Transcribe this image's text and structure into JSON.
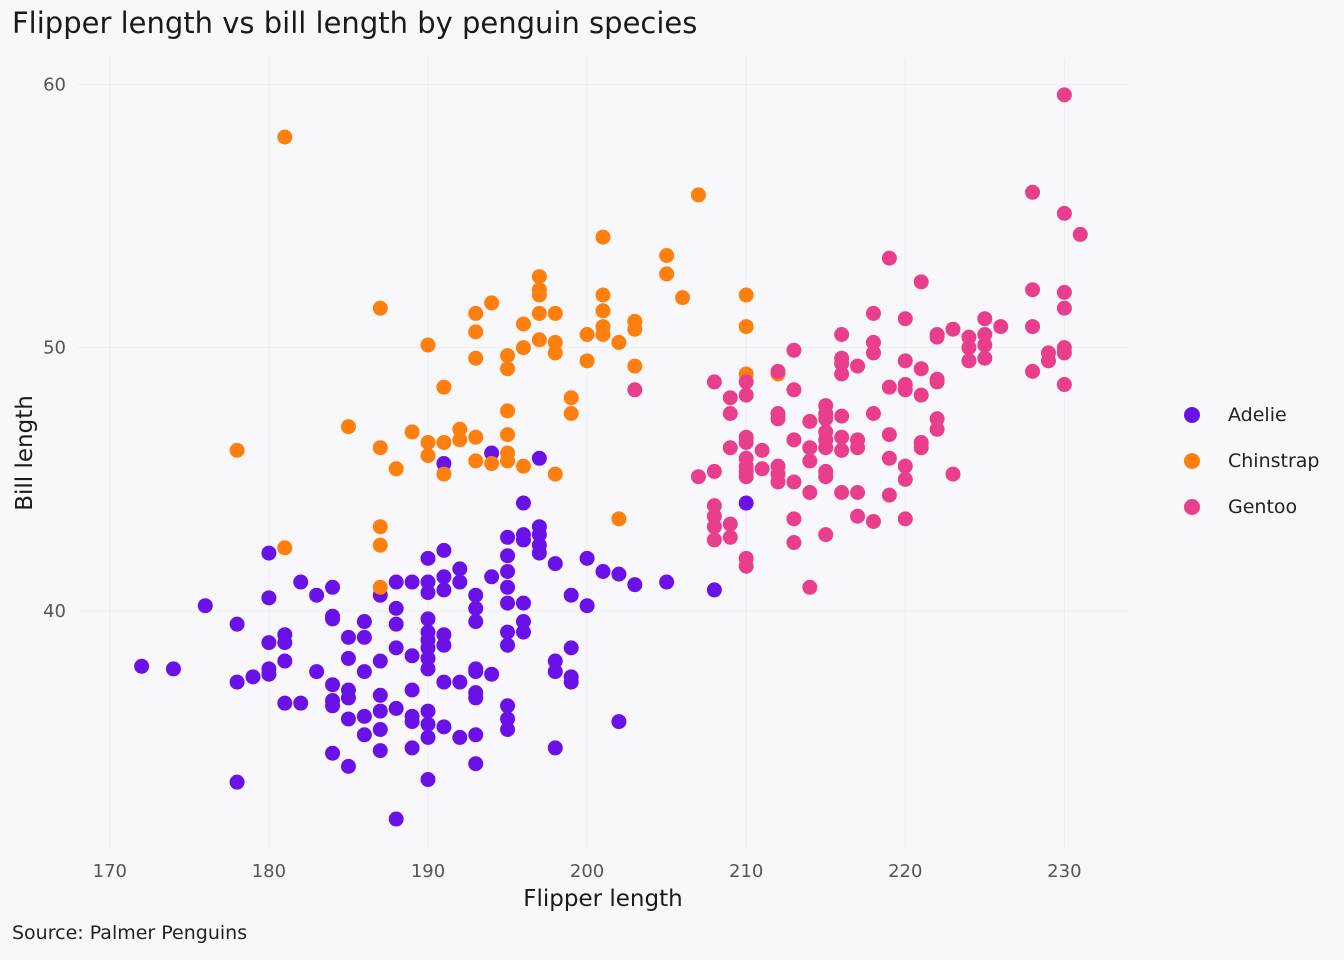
{
  "chart_data": {
    "type": "scatter",
    "title": "Flipper length vs bill length by penguin species",
    "xlabel": "Flipper length",
    "ylabel": "Bill length",
    "caption": "Source: Palmer Penguins",
    "xlim": [
      168,
      234
    ],
    "ylim": [
      31,
      61
    ],
    "xticks": [
      170,
      180,
      190,
      200,
      210,
      220,
      230
    ],
    "yticks": [
      40,
      50,
      60
    ],
    "grid": true,
    "legend_position": "right",
    "series": [
      {
        "name": "Adelie",
        "color": "#6a11e8",
        "points": [
          [
            172,
            37.9
          ],
          [
            174,
            37.8
          ],
          [
            176,
            40.2
          ],
          [
            178,
            39.5
          ],
          [
            178,
            37.3
          ],
          [
            178,
            33.5
          ],
          [
            179,
            37.5
          ],
          [
            180,
            42.2
          ],
          [
            180,
            40.5
          ],
          [
            180,
            38.8
          ],
          [
            180,
            37.8
          ],
          [
            180,
            37.6
          ],
          [
            181,
            39.1
          ],
          [
            181,
            38.8
          ],
          [
            181,
            38.1
          ],
          [
            181,
            36.5
          ],
          [
            182,
            41.1
          ],
          [
            182,
            36.5
          ],
          [
            183,
            40.6
          ],
          [
            183,
            37.7
          ],
          [
            184,
            40.9
          ],
          [
            184,
            39.8
          ],
          [
            184,
            39.7
          ],
          [
            184,
            37.2
          ],
          [
            184,
            36.6
          ],
          [
            184,
            36.4
          ],
          [
            184,
            34.6
          ],
          [
            185,
            38.2
          ],
          [
            185,
            39.0
          ],
          [
            185,
            37.0
          ],
          [
            185,
            36.7
          ],
          [
            185,
            35.9
          ],
          [
            185,
            34.1
          ],
          [
            186,
            39.6
          ],
          [
            186,
            39.0
          ],
          [
            186,
            37.7
          ],
          [
            186,
            36.0
          ],
          [
            186,
            35.3
          ],
          [
            187,
            40.6
          ],
          [
            187,
            38.1
          ],
          [
            187,
            36.8
          ],
          [
            187,
            36.2
          ],
          [
            187,
            35.5
          ],
          [
            187,
            34.7
          ],
          [
            188,
            41.1
          ],
          [
            188,
            40.1
          ],
          [
            188,
            38.6
          ],
          [
            188,
            39.5
          ],
          [
            188,
            36.3
          ],
          [
            188,
            32.1
          ],
          [
            189,
            41.1
          ],
          [
            189,
            38.3
          ],
          [
            189,
            37.0
          ],
          [
            189,
            36.0
          ],
          [
            189,
            35.8
          ],
          [
            189,
            34.8
          ],
          [
            190,
            42.0
          ],
          [
            190,
            41.1
          ],
          [
            190,
            40.7
          ],
          [
            190,
            39.7
          ],
          [
            190,
            39.2
          ],
          [
            190,
            38.9
          ],
          [
            190,
            38.6
          ],
          [
            190,
            38.2
          ],
          [
            190,
            37.8
          ],
          [
            190,
            36.2
          ],
          [
            190,
            35.7
          ],
          [
            190,
            35.2
          ],
          [
            190,
            33.6
          ],
          [
            191,
            42.3
          ],
          [
            191,
            41.3
          ],
          [
            191,
            40.8
          ],
          [
            191,
            39.1
          ],
          [
            191,
            38.7
          ],
          [
            191,
            37.3
          ],
          [
            191,
            35.6
          ],
          [
            192,
            41.6
          ],
          [
            192,
            41.1
          ],
          [
            192,
            37.3
          ],
          [
            192,
            35.2
          ],
          [
            193,
            40.6
          ],
          [
            193,
            40.1
          ],
          [
            193,
            39.6
          ],
          [
            193,
            37.8
          ],
          [
            193,
            37.7
          ],
          [
            193,
            36.9
          ],
          [
            193,
            36.7
          ],
          [
            193,
            35.3
          ],
          [
            193,
            34.2
          ],
          [
            194,
            41.3
          ],
          [
            194,
            37.6
          ],
          [
            195,
            42.8
          ],
          [
            195,
            42.1
          ],
          [
            195,
            41.5
          ],
          [
            195,
            40.9
          ],
          [
            195,
            40.3
          ],
          [
            195,
            39.2
          ],
          [
            195,
            38.7
          ],
          [
            195,
            36.4
          ],
          [
            195,
            35.9
          ],
          [
            195,
            35.5
          ],
          [
            196,
            44.1
          ],
          [
            196,
            42.9
          ],
          [
            196,
            42.7
          ],
          [
            196,
            40.3
          ],
          [
            196,
            39.6
          ],
          [
            196,
            39.2
          ],
          [
            197,
            43.2
          ],
          [
            197,
            42.9
          ],
          [
            197,
            42.5
          ],
          [
            197,
            42.2
          ],
          [
            198,
            41.8
          ],
          [
            198,
            38.1
          ],
          [
            198,
            37.7
          ],
          [
            198,
            34.8
          ],
          [
            199,
            40.6
          ],
          [
            199,
            38.6
          ],
          [
            199,
            37.5
          ],
          [
            199,
            37.3
          ],
          [
            200,
            42.0
          ],
          [
            200,
            40.2
          ],
          [
            201,
            41.5
          ],
          [
            202,
            41.4
          ],
          [
            202,
            35.8
          ],
          [
            203,
            41.0
          ],
          [
            205,
            41.1
          ],
          [
            208,
            40.8
          ],
          [
            210,
            44.1
          ],
          [
            191,
            45.6
          ],
          [
            194,
            46.0
          ],
          [
            197,
            45.8
          ]
        ]
      },
      {
        "name": "Chinstrap",
        "color": "#ff7f0e",
        "points": [
          [
            178,
            46.1
          ],
          [
            181,
            58.0
          ],
          [
            181,
            42.4
          ],
          [
            185,
            47.0
          ],
          [
            187,
            51.5
          ],
          [
            187,
            46.2
          ],
          [
            187,
            43.2
          ],
          [
            187,
            42.5
          ],
          [
            187,
            40.9
          ],
          [
            188,
            45.4
          ],
          [
            189,
            46.8
          ],
          [
            190,
            50.1
          ],
          [
            190,
            46.4
          ],
          [
            190,
            45.9
          ],
          [
            191,
            48.5
          ],
          [
            191,
            46.4
          ],
          [
            191,
            45.2
          ],
          [
            192,
            46.9
          ],
          [
            192,
            46.5
          ],
          [
            193,
            51.3
          ],
          [
            193,
            50.6
          ],
          [
            193,
            49.6
          ],
          [
            193,
            46.6
          ],
          [
            193,
            45.7
          ],
          [
            194,
            51.7
          ],
          [
            194,
            45.6
          ],
          [
            195,
            49.7
          ],
          [
            195,
            49.2
          ],
          [
            195,
            47.6
          ],
          [
            195,
            46.7
          ],
          [
            195,
            46.0
          ],
          [
            195,
            45.7
          ],
          [
            196,
            50.9
          ],
          [
            196,
            50.0
          ],
          [
            196,
            45.5
          ],
          [
            197,
            52.7
          ],
          [
            197,
            52.2
          ],
          [
            197,
            52.0
          ],
          [
            197,
            51.3
          ],
          [
            197,
            50.3
          ],
          [
            198,
            51.3
          ],
          [
            198,
            50.2
          ],
          [
            198,
            49.8
          ],
          [
            198,
            45.2
          ],
          [
            199,
            48.1
          ],
          [
            199,
            47.5
          ],
          [
            200,
            50.5
          ],
          [
            200,
            49.5
          ],
          [
            201,
            54.2
          ],
          [
            201,
            52.0
          ],
          [
            201,
            51.4
          ],
          [
            201,
            50.8
          ],
          [
            201,
            50.5
          ],
          [
            202,
            50.2
          ],
          [
            202,
            43.5
          ],
          [
            203,
            51.0
          ],
          [
            203,
            50.7
          ],
          [
            203,
            49.3
          ],
          [
            205,
            53.5
          ],
          [
            205,
            52.8
          ],
          [
            206,
            51.9
          ],
          [
            207,
            55.8
          ],
          [
            210,
            52.0
          ],
          [
            210,
            50.8
          ],
          [
            210,
            49.0
          ],
          [
            212,
            49.0
          ]
        ]
      },
      {
        "name": "Gentoo",
        "color": "#e83e8c",
        "points": [
          [
            203,
            48.4
          ],
          [
            207,
            45.1
          ],
          [
            208,
            48.7
          ],
          [
            208,
            45.3
          ],
          [
            208,
            44.0
          ],
          [
            208,
            43.6
          ],
          [
            208,
            43.2
          ],
          [
            208,
            42.7
          ],
          [
            209,
            48.1
          ],
          [
            209,
            47.5
          ],
          [
            209,
            46.2
          ],
          [
            209,
            43.3
          ],
          [
            209,
            42.8
          ],
          [
            210,
            48.7
          ],
          [
            210,
            48.2
          ],
          [
            210,
            46.6
          ],
          [
            210,
            46.4
          ],
          [
            210,
            45.8
          ],
          [
            210,
            45.5
          ],
          [
            210,
            45.3
          ],
          [
            210,
            45.1
          ],
          [
            210,
            42.0
          ],
          [
            210,
            41.7
          ],
          [
            211,
            46.1
          ],
          [
            211,
            45.4
          ],
          [
            212,
            49.1
          ],
          [
            212,
            47.5
          ],
          [
            212,
            47.3
          ],
          [
            212,
            45.5
          ],
          [
            212,
            45.2
          ],
          [
            212,
            44.9
          ],
          [
            213,
            49.9
          ],
          [
            213,
            48.4
          ],
          [
            213,
            46.5
          ],
          [
            213,
            44.9
          ],
          [
            213,
            43.5
          ],
          [
            213,
            42.6
          ],
          [
            214,
            47.2
          ],
          [
            214,
            46.2
          ],
          [
            214,
            45.7
          ],
          [
            214,
            44.5
          ],
          [
            214,
            40.9
          ],
          [
            215,
            47.8
          ],
          [
            215,
            47.5
          ],
          [
            215,
            47.3
          ],
          [
            215,
            46.8
          ],
          [
            215,
            46.5
          ],
          [
            215,
            46.2
          ],
          [
            215,
            45.3
          ],
          [
            215,
            45.1
          ],
          [
            215,
            42.9
          ],
          [
            216,
            50.5
          ],
          [
            216,
            49.6
          ],
          [
            216,
            49.4
          ],
          [
            216,
            49.0
          ],
          [
            216,
            47.4
          ],
          [
            216,
            46.6
          ],
          [
            216,
            46.1
          ],
          [
            216,
            44.5
          ],
          [
            217,
            49.3
          ],
          [
            217,
            46.5
          ],
          [
            217,
            46.2
          ],
          [
            217,
            44.5
          ],
          [
            217,
            43.6
          ],
          [
            218,
            51.3
          ],
          [
            218,
            50.2
          ],
          [
            218,
            49.8
          ],
          [
            218,
            47.5
          ],
          [
            218,
            43.4
          ],
          [
            219,
            53.4
          ],
          [
            219,
            48.5
          ],
          [
            219,
            46.7
          ],
          [
            219,
            45.8
          ],
          [
            219,
            44.4
          ],
          [
            220,
            51.1
          ],
          [
            220,
            49.5
          ],
          [
            220,
            48.6
          ],
          [
            220,
            48.4
          ],
          [
            220,
            45.5
          ],
          [
            220,
            45.0
          ],
          [
            220,
            43.5
          ],
          [
            221,
            52.5
          ],
          [
            221,
            49.2
          ],
          [
            221,
            48.2
          ],
          [
            221,
            46.4
          ],
          [
            221,
            46.2
          ],
          [
            222,
            50.5
          ],
          [
            222,
            50.4
          ],
          [
            222,
            48.8
          ],
          [
            222,
            48.7
          ],
          [
            222,
            47.3
          ],
          [
            222,
            46.9
          ],
          [
            223,
            50.7
          ],
          [
            223,
            45.2
          ],
          [
            224,
            50.4
          ],
          [
            224,
            50.0
          ],
          [
            224,
            49.5
          ],
          [
            225,
            51.1
          ],
          [
            225,
            50.5
          ],
          [
            225,
            50.1
          ],
          [
            225,
            49.6
          ],
          [
            226,
            50.8
          ],
          [
            228,
            55.9
          ],
          [
            228,
            52.2
          ],
          [
            228,
            50.8
          ],
          [
            228,
            49.1
          ],
          [
            229,
            49.8
          ],
          [
            229,
            49.5
          ],
          [
            230,
            55.1
          ],
          [
            230,
            52.1
          ],
          [
            230,
            51.5
          ],
          [
            230,
            50.0
          ],
          [
            230,
            49.8
          ],
          [
            230,
            48.6
          ],
          [
            230,
            59.6
          ],
          [
            231,
            54.3
          ]
        ]
      }
    ]
  }
}
